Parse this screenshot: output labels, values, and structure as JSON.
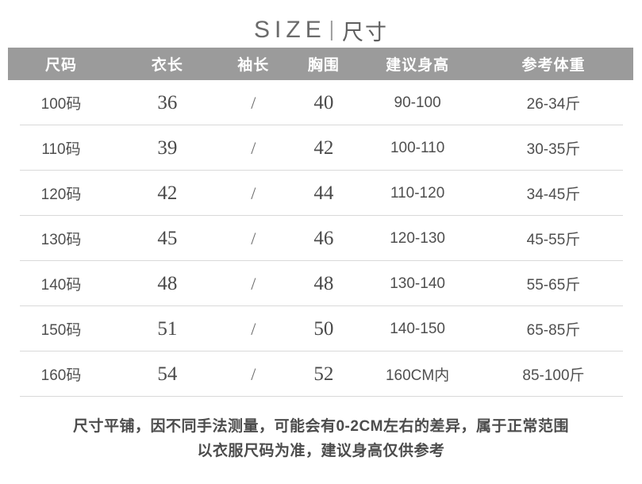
{
  "title": {
    "en": "SIZE",
    "separator": "|",
    "zh": "尺寸"
  },
  "chart_data": {
    "type": "table",
    "title": "SIZE | 尺寸",
    "columns": [
      "尺码",
      "衣长",
      "袖长",
      "胸围",
      "建议身高",
      "参考体重"
    ],
    "rows": [
      [
        "100码",
        "36",
        "/",
        "40",
        "90-100",
        "26-34斤"
      ],
      [
        "110码",
        "39",
        "/",
        "42",
        "100-110",
        "30-35斤"
      ],
      [
        "120码",
        "42",
        "/",
        "44",
        "110-120",
        "34-45斤"
      ],
      [
        "130码",
        "45",
        "/",
        "46",
        "120-130",
        "45-55斤"
      ],
      [
        "140码",
        "48",
        "/",
        "48",
        "130-140",
        "55-65斤"
      ],
      [
        "150码",
        "51",
        "/",
        "50",
        "140-150",
        "65-85斤"
      ],
      [
        "160码",
        "54",
        "/",
        "52",
        "160CM内",
        "85-100斤"
      ]
    ],
    "notes": [
      "尺寸平铺，因不同手法测量，可能会有0-2CM左右的差异，属于正常范围",
      "以衣服尺码为准，建议身高仅供参考"
    ]
  },
  "footer": {
    "line1": "尺寸平铺，因不同手法测量，可能会有0-2CM左右的差异，属于正常范围",
    "line2": "以衣服尺码为准，建议身高仅供参考"
  },
  "colors": {
    "page_bg": "#ffffff",
    "header_bg": "#9b9b9b",
    "header_text": "#ffffff",
    "body_text": "#4f4f4f",
    "divider": "#d9d9d9",
    "title_text": "#6b6b6b",
    "footer_text": "#4c4c4c"
  }
}
